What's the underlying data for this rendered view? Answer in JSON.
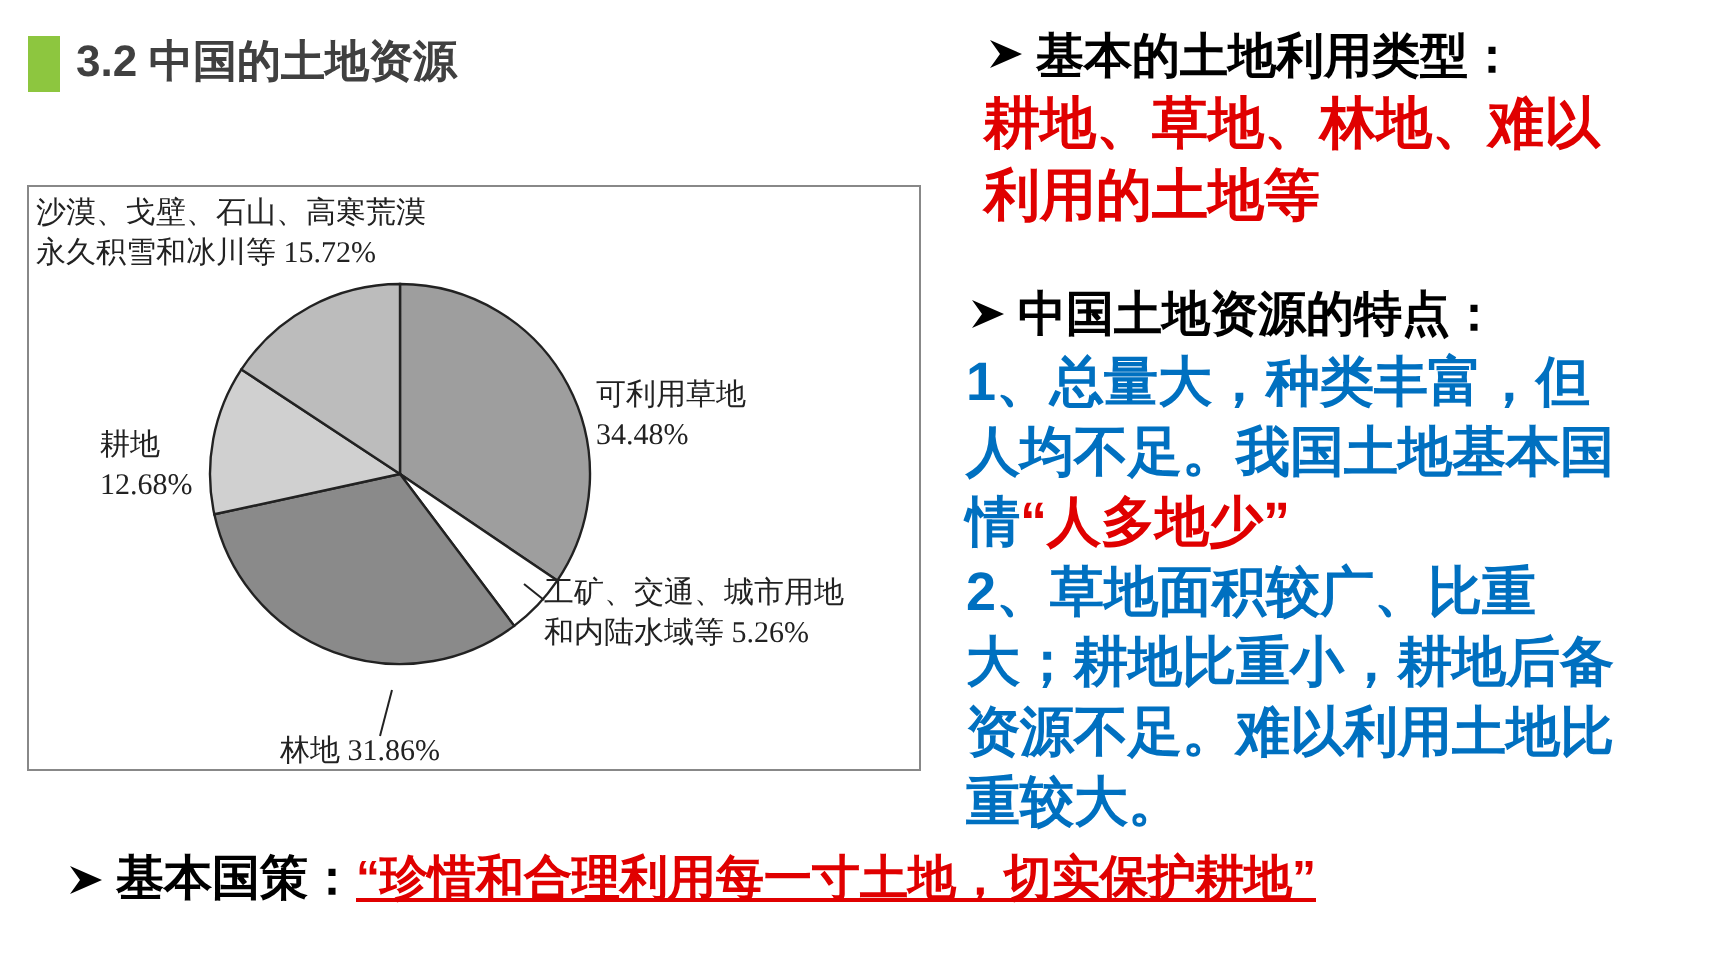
{
  "chart_data": {
    "type": "pie",
    "title": "3.2 中国的土地资源",
    "categories": [
      "可利用草地",
      "工矿、交通、城市用地和内陆水域等",
      "林地",
      "耕地",
      "沙漠、戈壁、石山、高寒荒漠永久积雪和冰川等"
    ],
    "values": [
      34.48,
      5.26,
      31.86,
      12.68,
      15.72
    ],
    "value_labels": [
      "34.48%",
      "5.26%",
      "31.86%",
      "12.68%",
      "15.72%"
    ],
    "colors": [
      "#9e9e9e",
      "#ffffff",
      "#8a8a8a",
      "#d0d0d0",
      "#bcbcbc"
    ],
    "annotations": [
      "基本的土地利用类型：",
      "耕地、草地、林地、难以利用的土地等",
      "中国土地资源的特点：",
      "1、总量大，种类丰富，但人均不足。我国土地基本国情",
      "“人多地少”",
      "2、草地面积较广、比重大；耕地比重小，耕地后备资源不足。难以利用土地比重较大。",
      "基本国策：",
      "“珍惜和合理利用每一寸土地，切实保护耕地”"
    ]
  }
}
